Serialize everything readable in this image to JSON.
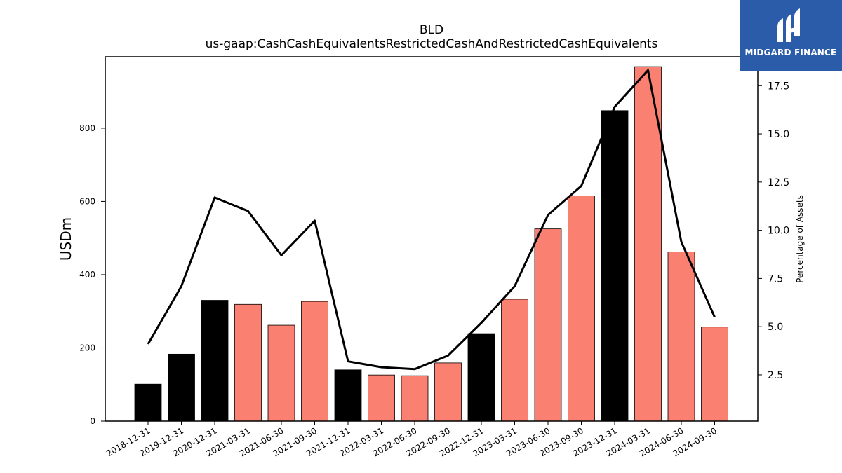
{
  "chart_data": {
    "type": "bar",
    "title": "BLD",
    "subtitle": "us-gaap:CashCashEquivalentsRestrictedCashAndRestrictedCashEquivalents",
    "ylabel": "USDm",
    "y2label": "Percentage of Assets",
    "ylim": [
      0,
      995
    ],
    "y2lim": [
      0.1,
      19.0
    ],
    "yticks": [
      0,
      200,
      400,
      600,
      800
    ],
    "y2ticks": [
      2.5,
      5.0,
      7.5,
      10.0,
      12.5,
      15.0,
      17.5
    ],
    "categories": [
      "2018-12-31",
      "2019-12-31",
      "2020-12-31",
      "2021-03-31",
      "2021-06-30",
      "2021-09-30",
      "2021-12-31",
      "2022-03-31",
      "2022-06-30",
      "2022-09-30",
      "2022-12-31",
      "2023-03-31",
      "2023-06-30",
      "2023-09-30",
      "2023-12-31",
      "2024-03-31",
      "2024-06-30",
      "2024-09-30"
    ],
    "series": [
      {
        "kind": "bar",
        "axis": "left",
        "values": [
          101,
          183,
          330,
          319,
          262,
          327,
          140,
          126,
          124,
          159,
          239,
          333,
          525,
          615,
          848,
          968,
          462,
          257
        ],
        "colors": [
          "#000000",
          "#000000",
          "#000000",
          "#fa8072",
          "#fa8072",
          "#fa8072",
          "#000000",
          "#fa8072",
          "#fa8072",
          "#fa8072",
          "#000000",
          "#fa8072",
          "#fa8072",
          "#fa8072",
          "#000000",
          "#fa8072",
          "#fa8072",
          "#fa8072"
        ]
      },
      {
        "kind": "line",
        "axis": "right",
        "color": "#000000",
        "values": [
          4.1,
          7.1,
          11.7,
          11.0,
          8.7,
          10.5,
          3.2,
          2.9,
          2.8,
          3.5,
          5.2,
          7.1,
          10.8,
          12.3,
          16.4,
          18.3,
          9.4,
          5.5
        ]
      }
    ]
  },
  "logo": {
    "text": "MIDGARD FINANCE",
    "icon": "midgard-logo-icon"
  }
}
